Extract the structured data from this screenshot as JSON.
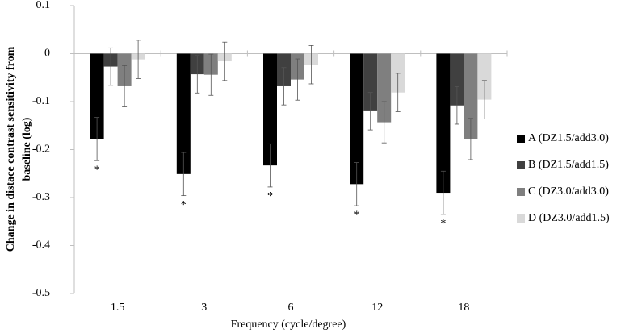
{
  "chart_data": {
    "type": "bar",
    "x_label": "Frequency (cycle/degree)",
    "y_label": [
      "Change in distace contrast sensitivity from",
      "baseline (log)"
    ],
    "categories": [
      "1.5",
      "3",
      "6",
      "12",
      "18"
    ],
    "series": [
      {
        "name": "A (DZ1.5/add3.0)",
        "color": "#000000",
        "values": [
          -0.178,
          -0.251,
          -0.233,
          -0.272,
          -0.29
        ],
        "errors": [
          0.045,
          0.045,
          0.045,
          0.045,
          0.045
        ],
        "annotations": [
          "*",
          "*",
          "*",
          "*",
          "*"
        ]
      },
      {
        "name": "B (DZ1.5/add1.5)",
        "color": "#404040",
        "values": [
          -0.027,
          -0.043,
          -0.068,
          -0.12,
          -0.108
        ],
        "errors": [
          0.039,
          0.039,
          0.039,
          0.039,
          0.039
        ]
      },
      {
        "name": "C (DZ3.0/add3.0)",
        "color": "#7f7f7f",
        "values": [
          -0.068,
          -0.044,
          -0.054,
          -0.143,
          -0.178
        ],
        "errors": [
          0.043,
          0.043,
          0.043,
          0.043,
          0.043
        ]
      },
      {
        "name": "D (DZ3.0/add1.5)",
        "color": "#d9d9d9",
        "values": [
          -0.012,
          -0.016,
          -0.023,
          -0.081,
          -0.096
        ],
        "errors": [
          0.04,
          0.04,
          0.04,
          0.04,
          0.04
        ]
      }
    ],
    "ylim": [
      -0.5,
      0.1
    ],
    "yticks": [
      0.1,
      0,
      -0.1,
      -0.2,
      -0.3,
      -0.4,
      -0.5
    ],
    "legend": "right"
  }
}
